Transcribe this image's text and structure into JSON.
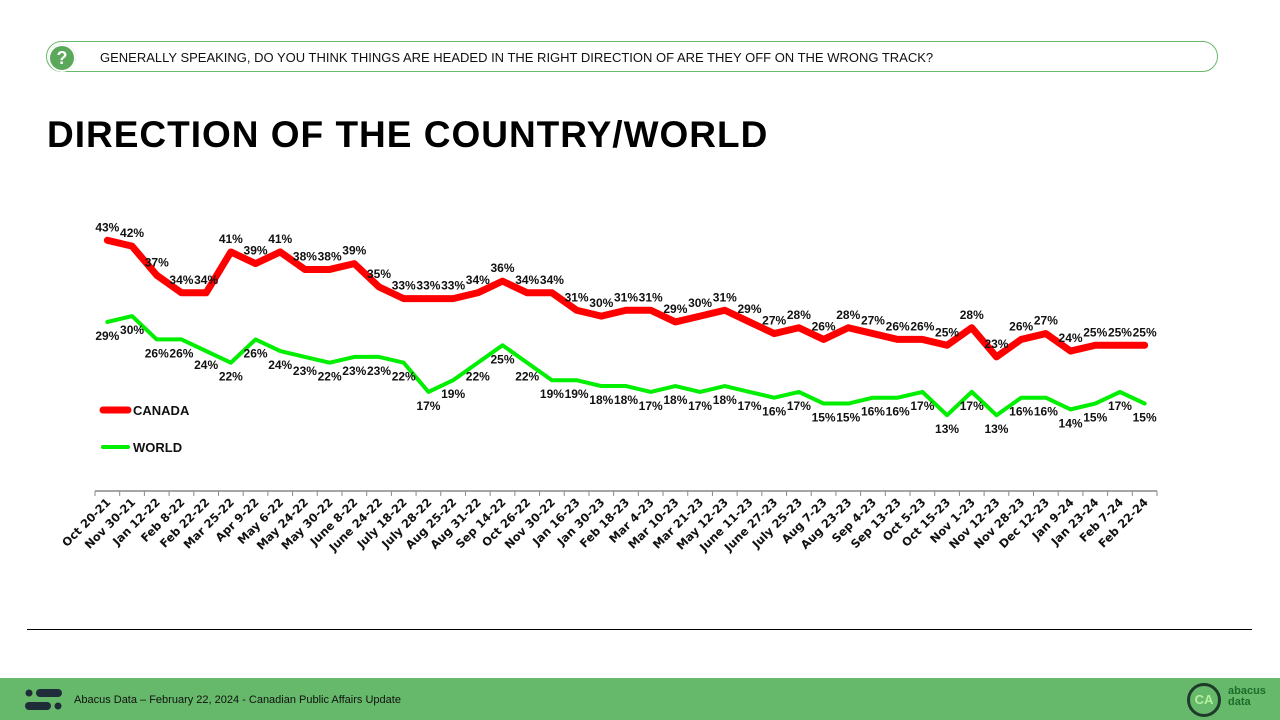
{
  "question": {
    "icon": "question-icon",
    "mark": "?",
    "text": "GENERALLY SPEAKING, DO YOU THINK THINGS ARE HEADED IN THE RIGHT DIRECTION OF ARE THEY OFF ON THE WRONG TRACK?"
  },
  "page_title": "DIRECTION OF THE COUNTRY/WORLD",
  "footer": {
    "text": "Abacus Data – February 22, 2024 - Canadian Public Affairs Update",
    "badge": "CA",
    "brand_top": "abacus",
    "brand_bottom": "data"
  },
  "chart_data": {
    "type": "line",
    "title": "",
    "xlabel": "",
    "ylabel": "",
    "ylim": [
      0,
      45
    ],
    "grid": false,
    "legend_placement": "left",
    "categories": [
      "Oct 20-21",
      "Nov 30-21",
      "Jan 12-22",
      "Feb 8-22",
      "Feb 22-22",
      "Mar 25-22",
      "Apr 9-22",
      "May 6-22",
      "May 24-22",
      "May 30-22",
      "June 8-22",
      "June 24-22",
      "July 18-22",
      "July 28-22",
      "Aug 25-22",
      "Aug 31-22",
      "Sep 14-22",
      "Oct 26-22",
      "Nov 30-22",
      "Jan 16-23",
      "Jan 30-23",
      "Feb 18-23",
      "Mar 4-23",
      "Mar 10-23",
      "Mar 21-23",
      "May 12-23",
      "June 11-23",
      "June 27-23",
      "July 25-23",
      "Aug 7-23",
      "Aug 23-23",
      "Sep 4-23",
      "Sep 13-23",
      "Oct 5-23",
      "Oct 15-23",
      "Nov 1-23",
      "Nov 12-23",
      "Nov 28-23",
      "Dec 12-23",
      "Jan 9-24",
      "Jan 23-24",
      "Feb 7-24",
      "Feb 22-24"
    ],
    "series": [
      {
        "name": "CANADA",
        "color": "#ff0000",
        "values": [
          43,
          42,
          37,
          34,
          34,
          41,
          39,
          41,
          38,
          38,
          39,
          35,
          33,
          33,
          33,
          34,
          36,
          34,
          34,
          31,
          30,
          31,
          31,
          29,
          30,
          31,
          29,
          27,
          28,
          26,
          28,
          27,
          26,
          26,
          25,
          28,
          23,
          26,
          27,
          24,
          25,
          25,
          25
        ]
      },
      {
        "name": "WORLD",
        "color": "#00ee00",
        "values": [
          29,
          30,
          26,
          26,
          24,
          22,
          26,
          24,
          23,
          22,
          23,
          23,
          22,
          17,
          19,
          22,
          25,
          22,
          19,
          19,
          18,
          18,
          17,
          18,
          17,
          18,
          17,
          16,
          17,
          15,
          15,
          16,
          16,
          17,
          13,
          17,
          13,
          16,
          16,
          14,
          15,
          17,
          15
        ]
      }
    ],
    "value_suffix": "%"
  }
}
